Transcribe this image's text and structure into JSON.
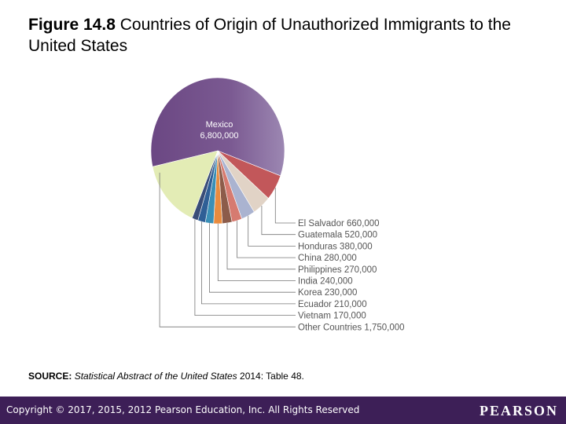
{
  "title": {
    "prefix": "Figure 14.8",
    "text": " Countries of Origin of Unauthorized Immigrants to the United States"
  },
  "chart_data": {
    "type": "pie",
    "title": "Countries of Origin of Unauthorized Immigrants to the United States",
    "slices": [
      {
        "label": "Mexico",
        "value_label": "6,800,000",
        "value": 6800000,
        "color": "#7a5890"
      },
      {
        "label": "El Salvador",
        "value_label": "660,000",
        "value": 660000,
        "color": "#c2575a"
      },
      {
        "label": "Guatemala",
        "value_label": "520,000",
        "value": 520000,
        "color": "#e1d3c6"
      },
      {
        "label": "Honduras",
        "value_label": "380,000",
        "value": 380000,
        "color": "#aab3d0"
      },
      {
        "label": "China",
        "value_label": "280,000",
        "value": 280000,
        "color": "#d67b70"
      },
      {
        "label": "Philippines",
        "value_label": "270,000",
        "value": 270000,
        "color": "#8c5c4a"
      },
      {
        "label": "India",
        "value_label": "240,000",
        "value": 240000,
        "color": "#e88b3e"
      },
      {
        "label": "Korea",
        "value_label": "230,000",
        "value": 230000,
        "color": "#3a8fb6"
      },
      {
        "label": "Ecuador",
        "value_label": "210,000",
        "value": 210000,
        "color": "#2f5f96"
      },
      {
        "label": "Vietnam",
        "value_label": "170,000",
        "value": 170000,
        "color": "#394d78"
      },
      {
        "label": "Other Countries",
        "value_label": "1,750,000",
        "value": 1750000,
        "color": "#e3ecb5"
      }
    ]
  },
  "source": {
    "label": "SOURCE:",
    "title": "Statistical Abstract of the United States",
    "rest": " 2014: Table 48."
  },
  "footer": {
    "copyright": "Copyright © 2017, 2015, 2012 Pearson Education, Inc. All Rights Reserved",
    "logo": "PEARSON"
  }
}
